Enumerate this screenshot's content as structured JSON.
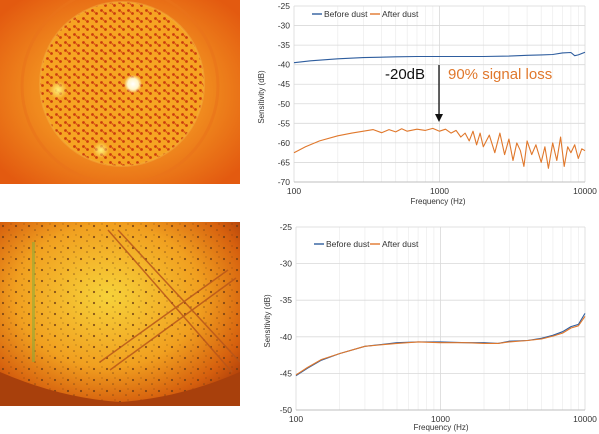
{
  "photos": [
    {
      "name": "mesh-membrane-closeup"
    },
    {
      "name": "dust-covered-membrane-closeup"
    }
  ],
  "colors": {
    "before": "#2e5d9e",
    "after": "#e0782c",
    "annotation_text": "#e0782c",
    "grid": "#d9d9d9"
  },
  "chart_data": [
    {
      "type": "line",
      "title": "",
      "xlabel": "Frequency (Hz)",
      "ylabel": "Sensitivity (dB)",
      "xscale": "log",
      "xlim": [
        100,
        10000
      ],
      "ylim": [
        -70,
        -25
      ],
      "xticks": [
        100,
        1000,
        10000
      ],
      "xtick_labels": [
        "100",
        "1000",
        "10000"
      ],
      "yticks": [
        -70,
        -65,
        -60,
        -55,
        -50,
        -45,
        -40,
        -35,
        -30,
        -25
      ],
      "ytick_labels": [
        "-70",
        "-65",
        "-60",
        "-55",
        "-50",
        "-45",
        "-40",
        "-35",
        "-30",
        "-25"
      ],
      "legend": {
        "position": "top",
        "entries": [
          "Before dust",
          "After dust"
        ]
      },
      "grid": true,
      "annotations": [
        "-20dB",
        "90% signal loss"
      ],
      "series": [
        {
          "name": "Before dust",
          "x": [
            100,
            130,
            170,
            200,
            300,
            500,
            700,
            1000,
            1500,
            2000,
            3000,
            4000,
            5000,
            6000,
            7000,
            8000,
            8500,
            9000,
            10000
          ],
          "y": [
            -39.5,
            -39.0,
            -38.7,
            -38.5,
            -38.2,
            -38.0,
            -37.9,
            -37.9,
            -37.9,
            -37.9,
            -37.8,
            -37.6,
            -37.5,
            -37.4,
            -37.0,
            -36.9,
            -37.7,
            -37.5,
            -36.8
          ]
        },
        {
          "name": "After dust",
          "x": [
            100,
            120,
            150,
            200,
            250,
            300,
            350,
            400,
            450,
            500,
            550,
            600,
            700,
            800,
            900,
            1000,
            1100,
            1200,
            1300,
            1400,
            1500,
            1600,
            1700,
            1800,
            1900,
            2000,
            2200,
            2400,
            2600,
            2800,
            3000,
            3200,
            3400,
            3600,
            3800,
            4000,
            4300,
            4600,
            5000,
            5300,
            5600,
            6000,
            6400,
            6800,
            7200,
            7600,
            8000,
            8500,
            9000,
            9500,
            10000
          ],
          "y": [
            -62.5,
            -61.0,
            -59.5,
            -58.2,
            -57.5,
            -57.0,
            -56.6,
            -57.4,
            -56.6,
            -57.2,
            -56.4,
            -57.0,
            -56.5,
            -56.8,
            -56.3,
            -57.0,
            -56.5,
            -57.5,
            -56.8,
            -58.5,
            -57.5,
            -59.5,
            -57.0,
            -60.5,
            -57.5,
            -61.0,
            -58.0,
            -62.5,
            -57.5,
            -63.0,
            -59.0,
            -64.5,
            -60.0,
            -62.0,
            -66.0,
            -59.5,
            -63.0,
            -60.5,
            -65.0,
            -61.0,
            -66.5,
            -60.0,
            -64.5,
            -58.5,
            -66.0,
            -61.0,
            -62.5,
            -60.5,
            -64.0,
            -61.5,
            -62.0
          ]
        }
      ]
    },
    {
      "type": "line",
      "title": "",
      "xlabel": "Frequency (Hz)",
      "ylabel": "Sensitivity (dB)",
      "xscale": "log",
      "xlim": [
        100,
        10000
      ],
      "ylim": [
        -50,
        -25
      ],
      "xticks": [
        100,
        1000,
        10000
      ],
      "xtick_labels": [
        "100",
        "1000",
        "10000"
      ],
      "yticks": [
        -50,
        -45,
        -40,
        -35,
        -30,
        -25
      ],
      "ytick_labels": [
        "-50",
        "-45",
        "-40",
        "-35",
        "-30",
        "-25"
      ],
      "legend": {
        "position": "top",
        "entries": [
          "Before dust",
          "After dust"
        ]
      },
      "grid": true,
      "series": [
        {
          "name": "Before dust",
          "x": [
            100,
            120,
            150,
            200,
            300,
            500,
            700,
            1000,
            1500,
            2000,
            2500,
            3000,
            4000,
            5000,
            6000,
            7000,
            8000,
            9000,
            10000
          ],
          "y": [
            -45.3,
            -44.3,
            -43.2,
            -42.3,
            -41.3,
            -40.8,
            -40.7,
            -40.7,
            -40.8,
            -40.8,
            -40.9,
            -40.6,
            -40.5,
            -40.2,
            -39.8,
            -39.3,
            -38.6,
            -38.3,
            -36.8
          ]
        },
        {
          "name": "After dust",
          "x": [
            100,
            120,
            150,
            200,
            300,
            500,
            700,
            1000,
            1500,
            2000,
            2500,
            3000,
            4000,
            5000,
            6000,
            7000,
            8000,
            9000,
            10000
          ],
          "y": [
            -45.2,
            -44.2,
            -43.1,
            -42.3,
            -41.3,
            -40.9,
            -40.7,
            -40.8,
            -40.8,
            -40.9,
            -40.9,
            -40.7,
            -40.5,
            -40.3,
            -39.9,
            -39.5,
            -38.8,
            -38.5,
            -37.2
          ]
        }
      ]
    }
  ]
}
